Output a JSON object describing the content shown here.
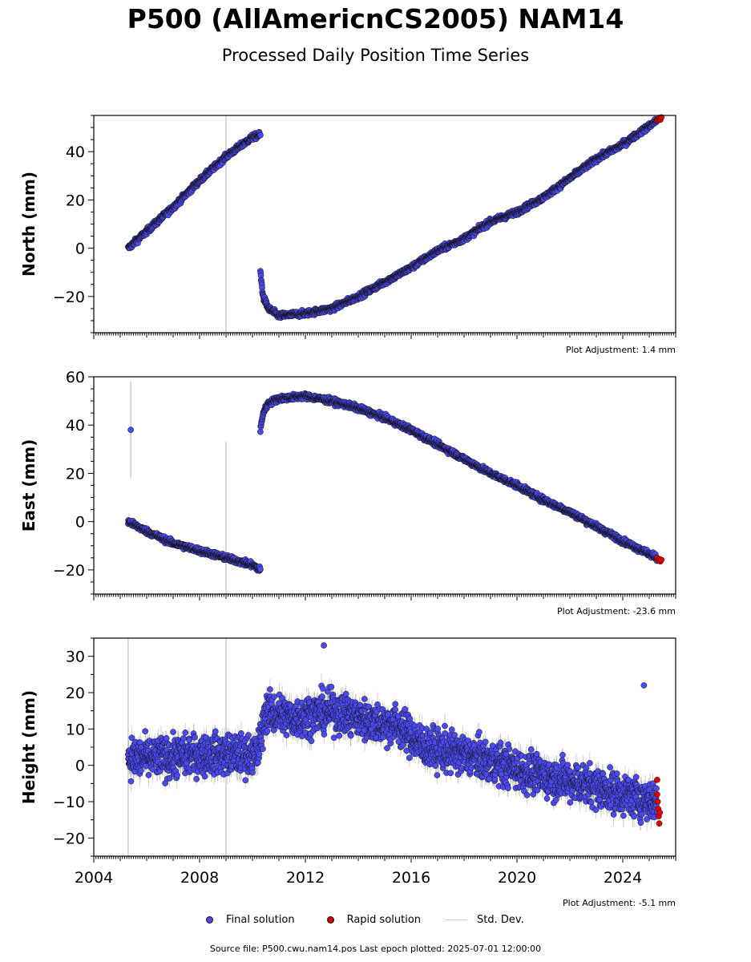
{
  "title": "P500 (AllAmericnCS2005) NAM14",
  "subtitle": "Processed Daily Position Time Series",
  "legend": {
    "final_label": "Final solution",
    "rapid_label": "Rapid solution",
    "std_label": "Std. Dev."
  },
  "footer": "Source file: P500.cwu.nam14.pos  Last epoch plotted: 2025-07-01 12:00:00",
  "colors": {
    "final": "#4a4af0",
    "rapid": "#e00000",
    "std": "#cccccc",
    "edge": "#111111"
  },
  "chart_data": [
    {
      "type": "scatter",
      "ylabel": "North (mm)",
      "adjustment_label": "Plot Adjustment: 1.4 mm",
      "xlim": [
        2004,
        2026
      ],
      "ylim": [
        -35,
        55
      ],
      "yticks": [
        -20,
        0,
        20,
        40
      ],
      "xticks": [
        2004,
        2008,
        2012,
        2016,
        2020,
        2024
      ],
      "show_x_tick_labels": false,
      "segments": [
        {
          "x": [
            2005.3,
            2006.0,
            2007.0,
            2008.0,
            2009.0,
            2010.0,
            2010.3
          ],
          "y": [
            0,
            7,
            17,
            28,
            38,
            46,
            47
          ],
          "noise": 1.2,
          "gap_after": true
        },
        {
          "x": [
            2010.3,
            2010.4,
            2010.6,
            2011.0,
            2012.0,
            2013.0,
            2014.0,
            2015.0,
            2016.0,
            2017.0,
            2018.0,
            2019.0,
            2020.0,
            2021.0,
            2022.0,
            2023.0,
            2024.0,
            2025.3
          ],
          "y": [
            -10,
            -20,
            -25,
            -28,
            -27,
            -25,
            -20,
            -14,
            -8,
            -1,
            4,
            11,
            15,
            21,
            29,
            37,
            43,
            53
          ],
          "noise": 1.2
        }
      ],
      "rapid": {
        "x": [
          2025.3,
          2025.34,
          2025.38,
          2025.42,
          2025.46
        ],
        "y": [
          53,
          53.5,
          54,
          53.2,
          54.2
        ]
      },
      "std_spikes": [
        {
          "x": 2009.0,
          "y0": -35,
          "y1": 55
        }
      ]
    },
    {
      "type": "scatter",
      "ylabel": "East (mm)",
      "adjustment_label": "Plot Adjustment: -23.6 mm",
      "xlim": [
        2004,
        2026
      ],
      "ylim": [
        -30,
        60
      ],
      "yticks": [
        -20,
        0,
        20,
        40,
        60
      ],
      "xticks": [
        2004,
        2008,
        2012,
        2016,
        2020,
        2024
      ],
      "show_x_tick_labels": false,
      "segments": [
        {
          "x": [
            2005.3,
            2006.0,
            2007.0,
            2008.0,
            2009.0,
            2010.0,
            2010.3
          ],
          "y": [
            0,
            -4,
            -9,
            -12,
            -15,
            -18,
            -20
          ],
          "noise": 1.2,
          "gap_after": true
        },
        {
          "x": [
            2010.3,
            2010.4,
            2010.6,
            2011.0,
            2012.0,
            2013.0,
            2014.0,
            2015.0,
            2016.0,
            2017.0,
            2018.0,
            2019.0,
            2020.0,
            2021.0,
            2022.0,
            2023.0,
            2024.0,
            2025.3
          ],
          "y": [
            38,
            45,
            49,
            51,
            52,
            50,
            47,
            43,
            38,
            32,
            26,
            20,
            15,
            9,
            4,
            -2,
            -8,
            -15
          ],
          "noise": 1.2
        }
      ],
      "outliers": [
        {
          "x": 2005.4,
          "y": 38
        }
      ],
      "rapid": {
        "x": [
          2025.3,
          2025.34,
          2025.38,
          2025.42,
          2025.46
        ],
        "y": [
          -15,
          -16,
          -15.5,
          -16.5,
          -15.8
        ]
      },
      "std_spikes": [
        {
          "x": 2005.4,
          "y0": 18,
          "y1": 58
        },
        {
          "x": 2009.0,
          "y0": -30,
          "y1": 33
        }
      ]
    },
    {
      "type": "scatter",
      "ylabel": "Height (mm)",
      "adjustment_label": "Plot Adjustment: -5.1 mm",
      "xlim": [
        2004,
        2026
      ],
      "ylim": [
        -25,
        35
      ],
      "yticks": [
        -20,
        -10,
        0,
        10,
        20,
        30
      ],
      "xticks": [
        2004,
        2008,
        2012,
        2016,
        2020,
        2024
      ],
      "show_x_tick_labels": true,
      "segments": [
        {
          "x": [
            2005.3,
            2006.5,
            2008.0,
            2009.5,
            2010.2,
            2010.5,
            2011.5,
            2013.0,
            2014.5,
            2015.5,
            2016.5,
            2018.0,
            2019.5,
            2021.0,
            2022.5,
            2024.0,
            2025.3
          ],
          "y": [
            2,
            2,
            3,
            3,
            3,
            15,
            13,
            15,
            12,
            11,
            5,
            3,
            0,
            -3,
            -5,
            -8,
            -10
          ],
          "noise": 5.5,
          "err": 2.5
        }
      ],
      "outliers": [
        {
          "x": 2024.8,
          "y": 22
        },
        {
          "x": 2012.7,
          "y": 33
        }
      ],
      "rapid": {
        "x": [
          2025.3,
          2025.3,
          2025.32,
          2025.34,
          2025.36,
          2025.38,
          2025.4
        ],
        "y": [
          -4,
          -8,
          -10,
          -12,
          -14,
          -16,
          -13
        ]
      },
      "std_spikes": [
        {
          "x": 2005.3,
          "y0": -25,
          "y1": 35
        },
        {
          "x": 2009.0,
          "y0": -25,
          "y1": 35
        }
      ]
    }
  ]
}
